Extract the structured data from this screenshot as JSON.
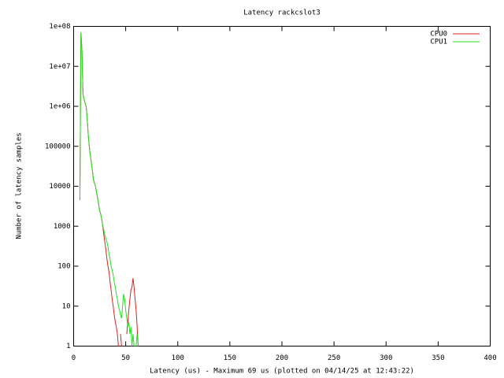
{
  "chart_data": {
    "type": "line",
    "title": "Latency rackcslot3",
    "x_label": "Latency (us) - Maximum 69 us (plotted on 04/14/25 at 12:43:22)",
    "y_label": "Number of latency samples",
    "x": [
      6,
      7,
      8,
      9,
      10,
      11,
      12,
      13,
      14,
      15,
      16,
      17,
      18,
      19,
      20,
      21,
      22,
      23,
      24,
      25,
      26,
      27,
      28,
      29,
      30,
      31,
      32,
      33,
      34,
      35,
      36,
      37,
      38,
      39,
      40,
      41,
      42,
      43,
      44,
      45,
      46,
      47,
      48,
      49,
      50,
      51,
      52,
      53,
      54,
      55,
      56,
      57,
      58,
      59,
      60,
      61,
      62,
      63,
      64,
      65,
      66,
      67,
      68,
      69
    ],
    "series": [
      {
        "name": "CPU0",
        "color": "#e02020",
        "values": [
          4500,
          70000000,
          25000000,
          2000000,
          1500000,
          1200000,
          1000000,
          500000,
          200000,
          100000,
          60000,
          40000,
          25000,
          15000,
          12000,
          10000,
          7000,
          5000,
          3500,
          2500,
          2000,
          1500,
          1000,
          600,
          400,
          250,
          150,
          100,
          70,
          40,
          25,
          15,
          10,
          6,
          4,
          3,
          2,
          1,
          null,
          2,
          1,
          null,
          null,
          null,
          null,
          2,
          4,
          8,
          15,
          25,
          30,
          50,
          30,
          15,
          8,
          3,
          1,
          null,
          null,
          null,
          null,
          null,
          null,
          null
        ]
      },
      {
        "name": "CPU1",
        "color": "#20e020",
        "values": [
          4500,
          70000000,
          25000000,
          2000000,
          1500000,
          1200000,
          1000000,
          500000,
          200000,
          100000,
          60000,
          40000,
          25000,
          15000,
          12000,
          10000,
          7000,
          5000,
          3500,
          2500,
          2000,
          1500,
          1000,
          800,
          600,
          500,
          400,
          300,
          200,
          150,
          100,
          80,
          60,
          40,
          30,
          20,
          15,
          10,
          8,
          6,
          5,
          10,
          20,
          15,
          8,
          5,
          3,
          4,
          2,
          3,
          1,
          2,
          1,
          null,
          1,
          2,
          1,
          null,
          1,
          null,
          1,
          null,
          null,
          1
        ]
      }
    ],
    "xlim": [
      0,
      400
    ],
    "xticks": [
      0,
      50,
      100,
      150,
      200,
      250,
      300,
      350,
      400
    ],
    "ylim": [
      1,
      100000000
    ],
    "log_y": true,
    "yticks": [
      1,
      10,
      100,
      1000,
      10000,
      100000,
      {
        "value": 1000000,
        "label": "1e+06"
      },
      {
        "value": 10000000,
        "label": "1e+07"
      },
      {
        "value": 100000000,
        "label": "1e+08"
      }
    ],
    "legend": "top-right"
  }
}
